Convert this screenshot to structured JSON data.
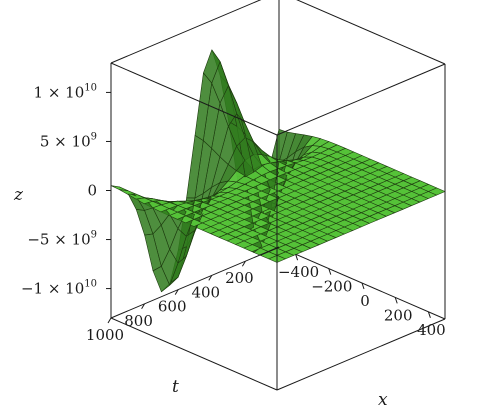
{
  "chart_data": {
    "type": "surface",
    "axes": {
      "x": {
        "label": "x",
        "range": [
          -500,
          500
        ],
        "ticks": [
          -400,
          -200,
          0,
          200,
          400
        ],
        "tick_labels": [
          "−400",
          "−200",
          "0",
          "200",
          "400"
        ]
      },
      "t": {
        "label": "t",
        "range": [
          0,
          1000
        ],
        "ticks": [
          200,
          400,
          600,
          800,
          1000
        ],
        "tick_labels": [
          "200",
          "400",
          "600",
          "800",
          "1000"
        ]
      },
      "z": {
        "label": "z",
        "range": [
          -13000000000,
          13000000000
        ],
        "ticks": [
          -10000000000,
          -5000000000,
          0,
          5000000000,
          10000000000
        ],
        "tick_labels": [
          "−1 × 10",
          "−5 × 10",
          "0",
          "5 × 10",
          "1 × 10"
        ],
        "tick_exponents": [
          "10",
          "9",
          "",
          "9",
          "10"
        ]
      }
    },
    "surface": {
      "description_of_shape": "flat plane z=0 for x > 0; oscillating sheet along t at the x = -500 edge",
      "x_grid": [
        -500,
        -450,
        -400,
        -350,
        -300,
        -250,
        -200,
        -150,
        -100,
        -50,
        0,
        50,
        100,
        150,
        200,
        250,
        300,
        350,
        400,
        450,
        500
      ],
      "t_grid": [
        0,
        50,
        100,
        150,
        200,
        250,
        300,
        350,
        400,
        450,
        500,
        550,
        600,
        650,
        700,
        750,
        800,
        850,
        900,
        950,
        1000
      ],
      "z_at_x_min_vs_t": [
        -1000000000,
        -4000000000,
        -9000000000,
        -12500000000,
        -10000000000,
        -4000000000,
        2000000000,
        7000000000,
        10000000000,
        8000000000,
        2000000000,
        -4000000000,
        -9000000000,
        -12000000000,
        -12500000000,
        -10000000000,
        -6000000000,
        -3000000000,
        -1000000000,
        0,
        500000000
      ]
    },
    "colors": {
      "surface": "#55c238",
      "surface_dark": "#2f7a1c",
      "mesh": "#1e3b10",
      "box": "#1a1a1a"
    }
  }
}
